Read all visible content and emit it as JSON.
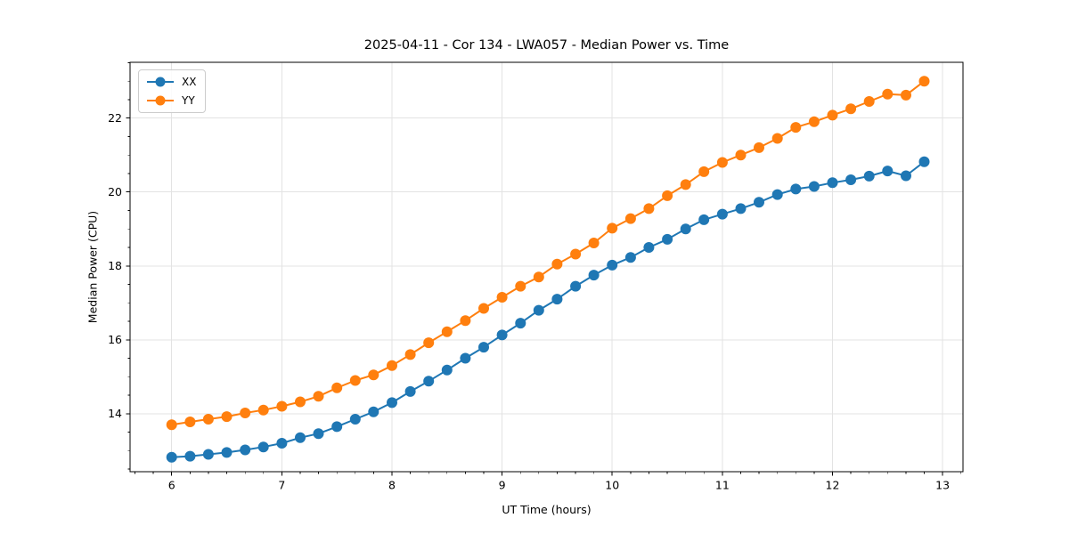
{
  "chart_data": {
    "type": "line",
    "title": "2025-04-11 - Cor 134 - LWA057 - Median Power vs. Time",
    "xlabel": "UT Time (hours)",
    "ylabel": "Median Power (CPU)",
    "xlim": [
      5.622,
      13.185
    ],
    "ylim": [
      12.43,
      23.51
    ],
    "xticks": [
      6,
      7,
      8,
      9,
      10,
      11,
      12,
      13
    ],
    "yticks": [
      14,
      16,
      18,
      20,
      22
    ],
    "minor_x_step": 0.16667,
    "minor_y_step": 0.5,
    "grid": true,
    "grid_color": "#e3e3e3",
    "legend_position": "upper left",
    "x": [
      6.0,
      6.167,
      6.333,
      6.5,
      6.667,
      6.833,
      7.0,
      7.167,
      7.333,
      7.5,
      7.667,
      7.833,
      8.0,
      8.167,
      8.333,
      8.5,
      8.667,
      8.833,
      9.0,
      9.167,
      9.333,
      9.5,
      9.667,
      9.833,
      10.0,
      10.167,
      10.333,
      10.5,
      10.667,
      10.833,
      11.0,
      11.167,
      11.333,
      11.5,
      11.667,
      11.833,
      12.0,
      12.167,
      12.333,
      12.5,
      12.667,
      12.833
    ],
    "series": [
      {
        "name": "XX",
        "color": "#1f77b4",
        "values": [
          12.82,
          12.85,
          12.9,
          12.95,
          13.02,
          13.1,
          13.2,
          13.35,
          13.46,
          13.65,
          13.85,
          14.05,
          14.3,
          14.6,
          14.88,
          15.18,
          15.5,
          15.8,
          16.13,
          16.45,
          16.8,
          17.1,
          17.45,
          17.75,
          18.02,
          18.23,
          18.5,
          18.72,
          19.0,
          19.25,
          19.4,
          19.55,
          19.72,
          19.93,
          20.08,
          20.15,
          20.25,
          20.33,
          20.43,
          20.57,
          20.44,
          20.82
        ]
      },
      {
        "name": "YY",
        "color": "#ff7f0e",
        "values": [
          13.7,
          13.78,
          13.85,
          13.92,
          14.02,
          14.1,
          14.2,
          14.32,
          14.47,
          14.7,
          14.9,
          15.05,
          15.3,
          15.6,
          15.92,
          16.22,
          16.52,
          16.85,
          17.15,
          17.45,
          17.7,
          18.05,
          18.32,
          18.62,
          19.02,
          19.28,
          19.55,
          19.9,
          20.2,
          20.55,
          20.8,
          21.0,
          21.2,
          21.45,
          21.75,
          21.9,
          22.08,
          22.25,
          22.45,
          22.65,
          22.62,
          23.0
        ]
      }
    ]
  }
}
